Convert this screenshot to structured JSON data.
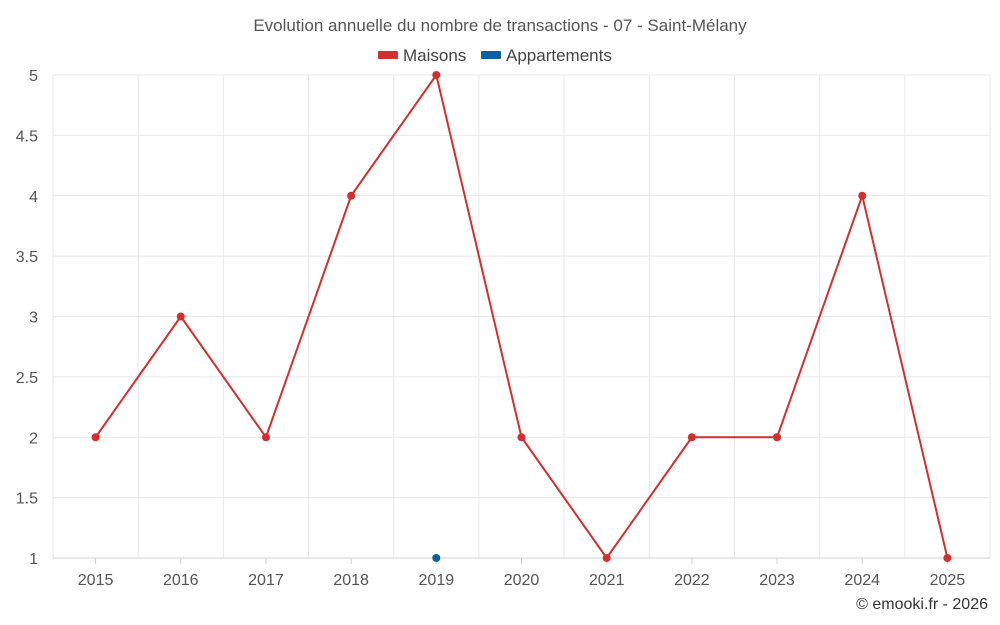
{
  "chart_data": {
    "type": "line",
    "title": "Evolution annuelle du nombre de transactions - 07 - Saint-Mélany",
    "categories": [
      "2015",
      "2016",
      "2017",
      "2018",
      "2019",
      "2020",
      "2021",
      "2022",
      "2023",
      "2024",
      "2025"
    ],
    "ylim": [
      1,
      5
    ],
    "yticks": [
      "1",
      "1.5",
      "2",
      "2.5",
      "3",
      "3.5",
      "4",
      "4.5",
      "5"
    ],
    "grid": true,
    "legend_position": "top-center",
    "series": [
      {
        "name": "Maisons",
        "color": "#d32f2f",
        "values": [
          2,
          3,
          2,
          4,
          5,
          2,
          1,
          2,
          2,
          4,
          1
        ]
      },
      {
        "name": "Appartements",
        "color": "#0d5fa0",
        "values": [
          null,
          null,
          null,
          null,
          1,
          null,
          null,
          null,
          null,
          null,
          null
        ]
      }
    ]
  },
  "credit": "© emooki.fr - 2026"
}
